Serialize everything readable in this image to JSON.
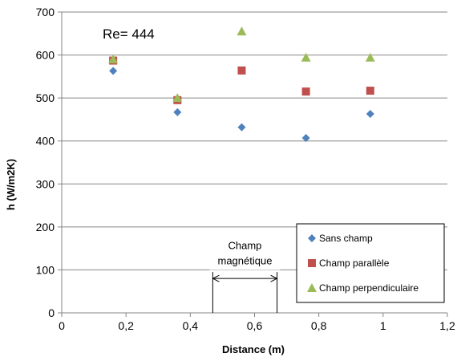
{
  "chart_data": {
    "type": "scatter",
    "xlabel": "Distance (m)",
    "ylabel": "h (W/m2K)",
    "xlim": [
      0,
      1.2
    ],
    "ylim": [
      0,
      700
    ],
    "x_ticks": [
      "0",
      "0,2",
      "0,4",
      "0,6",
      "0,8",
      "1",
      "1,2"
    ],
    "y_ticks": [
      "0",
      "100",
      "200",
      "300",
      "400",
      "500",
      "600",
      "700"
    ],
    "grid": "horizontal",
    "legend_position": "bottom-right",
    "annotations": {
      "re": "Re= 444",
      "field_zone_line1": "Champ",
      "field_zone_line2": "magnétique",
      "field_zone_range": [
        0.47,
        0.67
      ]
    },
    "series": [
      {
        "name": "Sans champ",
        "marker": "diamond",
        "color": "#4f81bd",
        "points": [
          [
            0.16,
            563
          ],
          [
            0.36,
            467
          ],
          [
            0.56,
            432
          ],
          [
            0.76,
            407
          ],
          [
            0.96,
            463
          ]
        ]
      },
      {
        "name": "Champ parallèle",
        "marker": "square",
        "color": "#c0504d",
        "points": [
          [
            0.16,
            587
          ],
          [
            0.36,
            495
          ],
          [
            0.56,
            564
          ],
          [
            0.76,
            515
          ],
          [
            0.96,
            517
          ]
        ]
      },
      {
        "name": "Champ perpendiculaire",
        "marker": "triangle",
        "color": "#9bbb59",
        "points": [
          [
            0.16,
            590
          ],
          [
            0.36,
            500
          ],
          [
            0.56,
            655
          ],
          [
            0.76,
            594
          ],
          [
            0.96,
            594
          ]
        ]
      }
    ]
  }
}
